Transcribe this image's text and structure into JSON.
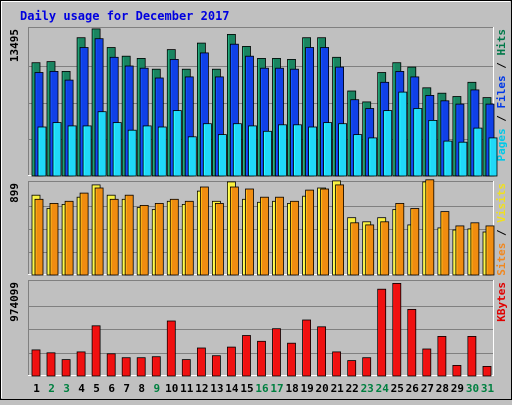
{
  "chart_data": {
    "type": "bar",
    "title": "Daily usage for December 2017",
    "categories": [
      "1",
      "2",
      "3",
      "4",
      "5",
      "6",
      "7",
      "8",
      "9",
      "10",
      "11",
      "12",
      "13",
      "14",
      "15",
      "16",
      "17",
      "18",
      "19",
      "20",
      "21",
      "22",
      "23",
      "24",
      "25",
      "26",
      "27",
      "28",
      "29",
      "30",
      "31"
    ],
    "weekend_days": [
      "2",
      "3",
      "9",
      "16",
      "17",
      "23",
      "24",
      "30",
      "31"
    ],
    "panels": [
      {
        "id": "pages-files-hits",
        "max_label": "13495",
        "ylim": [
          0,
          13495
        ],
        "right_label": [
          {
            "text": "Pages",
            "color": "#00c8e8"
          },
          {
            "text": " / ",
            "color": "#000000"
          },
          {
            "text": "Files",
            "color": "#0038e8"
          },
          {
            "text": " / ",
            "color": "#000000"
          },
          {
            "text": "Hits",
            "color": "#007848"
          }
        ],
        "series": [
          {
            "name": "Hits",
            "color": "#1a8460",
            "values": [
              10400,
              10500,
              9600,
              12700,
              13500,
              11800,
              11000,
              10800,
              9800,
              11600,
              9800,
              12200,
              9800,
              13000,
              11900,
              10800,
              10800,
              10700,
              12700,
              12700,
              10900,
              7800,
              6800,
              9500,
              10400,
              10000,
              8100,
              7600,
              7300,
              8600,
              7200
            ]
          },
          {
            "name": "Files",
            "color": "#1040e8",
            "values": [
              9500,
              9600,
              8800,
              11800,
              12600,
              10900,
              10100,
              9900,
              9000,
              10700,
              9100,
              11300,
              9100,
              12100,
              11000,
              9900,
              9900,
              9800,
              11800,
              11800,
              10000,
              7000,
              6200,
              8600,
              9600,
              9100,
              7400,
              6900,
              6600,
              7900,
              6600
            ]
          },
          {
            "name": "Pages",
            "color": "#20d8f8",
            "values": [
              4500,
              4900,
              4600,
              4600,
              5900,
              4900,
              4200,
              4600,
              4500,
              6000,
              3600,
              4800,
              3800,
              4800,
              4600,
              4100,
              4700,
              4700,
              4500,
              4900,
              4800,
              3800,
              3500,
              6000,
              7700,
              6200,
              5100,
              3200,
              3100,
              4400,
              3500
            ]
          }
        ]
      },
      {
        "id": "sites-visits",
        "max_label": "899",
        "ylim": [
          0,
          899
        ],
        "right_label": [
          {
            "text": "Sites",
            "color": "#f08820"
          },
          {
            "text": " / ",
            "color": "#000000"
          },
          {
            "text": "Visits",
            "color": "#f0e020"
          }
        ],
        "series": [
          {
            "name": "Visits",
            "color": "#f8f040",
            "values": [
              780,
              650,
              690,
              760,
              880,
              780,
              740,
              660,
              640,
              720,
              690,
              820,
              720,
              910,
              740,
              710,
              720,
              700,
              770,
              850,
              920,
              560,
              520,
              560,
              640,
              490,
              910,
              460,
              440,
              450,
              420
            ]
          },
          {
            "name": "Sites",
            "color": "#f08c10",
            "values": [
              740,
              700,
              720,
              800,
              850,
              740,
              780,
              680,
              700,
              740,
              720,
              860,
              700,
              860,
              840,
              760,
              760,
              720,
              830,
              840,
              880,
              510,
              490,
              520,
              700,
              650,
              930,
              620,
              480,
              510,
              480
            ]
          }
        ]
      },
      {
        "id": "kbytes",
        "max_label": "974099",
        "ylim": [
          0,
          974099
        ],
        "right_label": [
          {
            "text": "KBytes",
            "color": "#e00000"
          }
        ],
        "series": [
          {
            "name": "KBytes",
            "color": "#f01010",
            "values": [
              270000,
              240000,
              170000,
              250000,
              520000,
              230000,
              190000,
              190000,
              200000,
              570000,
              170000,
              290000,
              210000,
              300000,
              420000,
              360000,
              490000,
              340000,
              580000,
              510000,
              250000,
              160000,
              190000,
              900000,
              960000,
              690000,
              280000,
              410000,
              110000,
              410000,
              100000
            ]
          }
        ]
      }
    ]
  }
}
